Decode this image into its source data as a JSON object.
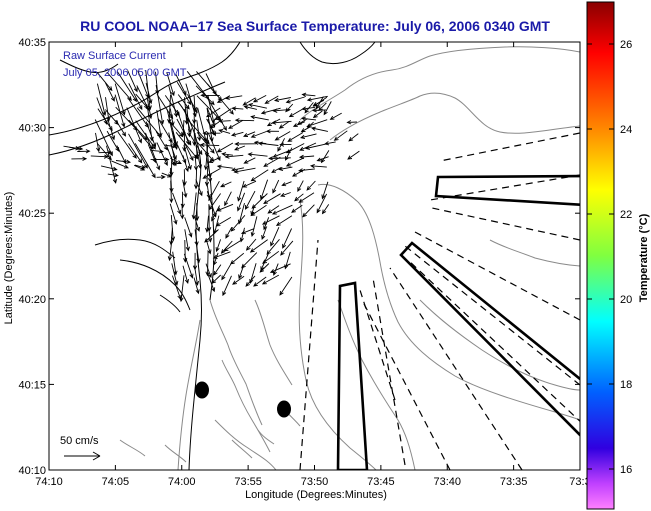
{
  "title": "RU COOL  NOAA−17  Sea Surface Temperature:  July 06, 2006 0340 GMT",
  "legend_text": {
    "line1": "Raw Surface Current",
    "line2": "July 05, 2006 05:00 GMT"
  },
  "x_axis": {
    "label": "Longitude (Degrees:Minutes)",
    "ticks": [
      "74:10",
      "74:05",
      "74:00",
      "73:55",
      "73:50",
      "73:45",
      "73:40",
      "73:35",
      "73:3"
    ]
  },
  "y_axis": {
    "label": "Latitude (Degrees:Minutes)",
    "ticks": [
      "40:35",
      "40:30",
      "40:25",
      "40:20",
      "40:15",
      "40:10"
    ]
  },
  "colorbar": {
    "label": "Temperature (°C)",
    "ticks": [
      "26",
      "24",
      "22",
      "20",
      "18",
      "16"
    ]
  },
  "scale_label": "50 cm/s",
  "colors": {
    "title": "#1a1aa8",
    "watermark": "#2a2ab0",
    "coast": "#000000",
    "bathymetry": "#8a8a8a",
    "vectors": "#000000"
  }
}
